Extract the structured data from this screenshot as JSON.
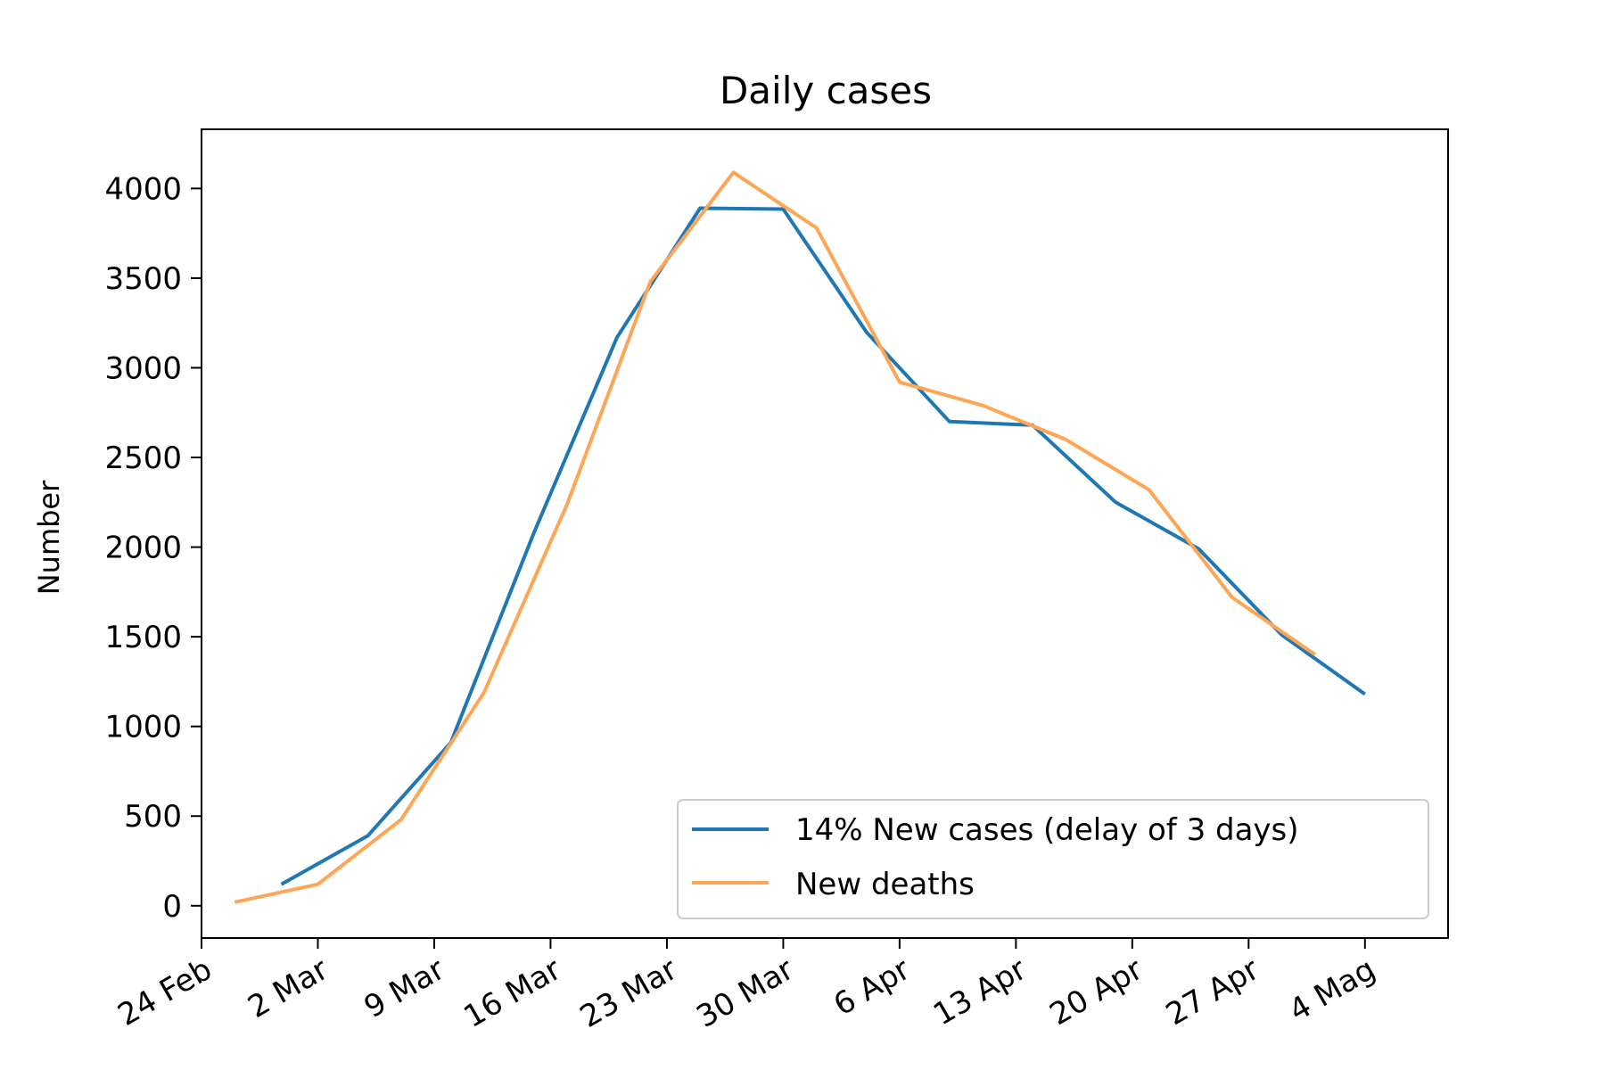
{
  "chart_data": {
    "type": "line",
    "title": "Daily cases",
    "xlabel": "",
    "ylabel": "Number",
    "x_ticks": [
      "24 Feb",
      "2 Mar",
      "9 Mar",
      "16 Mar",
      "23 Mar",
      "30 Mar",
      "6 Apr",
      "13 Apr",
      "20 Apr",
      "27 Apr",
      "4 Mag"
    ],
    "x_tick_days": [
      0,
      7,
      14,
      21,
      28,
      35,
      42,
      49,
      56,
      63,
      70
    ],
    "xlim_days": [
      0,
      75
    ],
    "y_ticks": [
      0,
      500,
      1000,
      1500,
      2000,
      2500,
      3000,
      3500,
      4000
    ],
    "ylim": [
      -180,
      4330
    ],
    "grid": false,
    "legend_position": "lower-right",
    "series": [
      {
        "name": "14% New cases (delay of 3 days)",
        "color": "#1f77b4",
        "points": [
          [
            4.8,
            120
          ],
          [
            10,
            390
          ],
          [
            15,
            910
          ],
          [
            20,
            2080
          ],
          [
            25,
            3170
          ],
          [
            30,
            3890
          ],
          [
            35,
            3885
          ],
          [
            40,
            3200
          ],
          [
            45,
            2700
          ],
          [
            50,
            2680
          ],
          [
            55,
            2250
          ],
          [
            60,
            1990
          ],
          [
            65,
            1510
          ],
          [
            70,
            1180
          ]
        ]
      },
      {
        "name": "New deaths",
        "color": "#ffa556",
        "points": [
          [
            2,
            20
          ],
          [
            7,
            120
          ],
          [
            12,
            480
          ],
          [
            17,
            1190
          ],
          [
            22,
            2240
          ],
          [
            27,
            3480
          ],
          [
            32,
            4090
          ],
          [
            37,
            3780
          ],
          [
            42,
            2920
          ],
          [
            47,
            2790
          ],
          [
            52,
            2600
          ],
          [
            57,
            2320
          ],
          [
            62,
            1720
          ],
          [
            67,
            1400
          ]
        ]
      }
    ]
  }
}
